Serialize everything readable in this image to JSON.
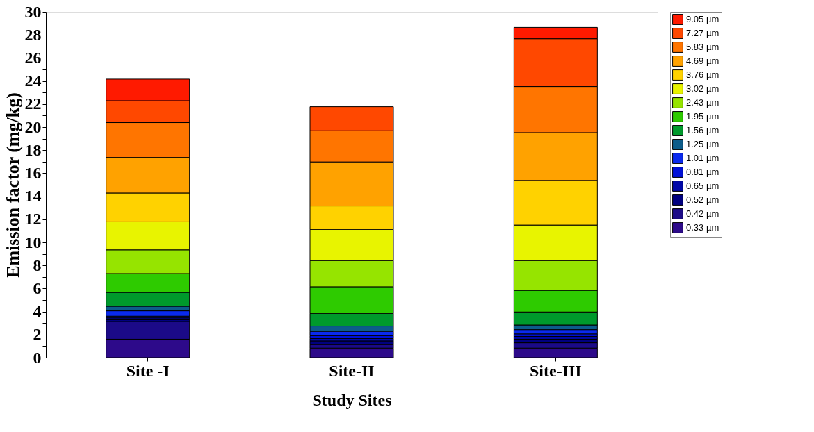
{
  "chart_data": {
    "type": "bar",
    "stacked": true,
    "xlabel": "Study Sites",
    "ylabel": "Emission factor (mg/kg)",
    "categories": [
      "Site -I",
      "Site-II",
      "Site-III"
    ],
    "ylim": [
      0,
      30
    ],
    "yticks": [
      0,
      {
        "value": 1,
        "label": null
      },
      2,
      {
        "value": 3,
        "label": null
      },
      4,
      {
        "value": 5,
        "label": null
      },
      6,
      {
        "value": 7,
        "label": null
      },
      8,
      {
        "value": 9,
        "label": null
      },
      10,
      {
        "value": 11,
        "label": null
      },
      12,
      {
        "value": 13,
        "label": null
      },
      14,
      {
        "value": 15,
        "label": null
      },
      16,
      {
        "value": 17,
        "label": null
      },
      18,
      {
        "value": 19,
        "label": null
      },
      20,
      {
        "value": 21,
        "label": null
      },
      22,
      {
        "value": 23,
        "label": null
      },
      24,
      {
        "value": 25,
        "label": null
      },
      26,
      {
        "value": 27,
        "label": null
      },
      28,
      {
        "value": 29,
        "label": null
      },
      30
    ],
    "grid": false,
    "legend": "top right",
    "series": [
      {
        "name": "0.33 µm",
        "color": "#2d0a8a",
        "values": [
          1.6,
          0.83,
          0.83
        ]
      },
      {
        "name": "0.42 µm",
        "color": "#1b0a88",
        "values": [
          1.53,
          0.31,
          0.46
        ]
      },
      {
        "name": "0.52 µm",
        "color": "#000080",
        "values": [
          0.16,
          0.31,
          0.31
        ]
      },
      {
        "name": "0.65 µm",
        "color": "#0008a8",
        "values": [
          0.16,
          0.21,
          0.24
        ]
      },
      {
        "name": "0.81 µm",
        "color": "#0010d8",
        "values": [
          0.15,
          0.25,
          0.22
        ]
      },
      {
        "name": "1.01 µm",
        "color": "#0a2aee",
        "values": [
          0.46,
          0.37,
          0.37
        ]
      },
      {
        "name": "1.25 µm",
        "color": "#0c5c8a",
        "values": [
          0.4,
          0.46,
          0.4
        ]
      },
      {
        "name": "1.56 µm",
        "color": "#009a2c",
        "values": [
          1.2,
          1.1,
          1.13
        ]
      },
      {
        "name": "1.95 µm",
        "color": "#2ecb00",
        "values": [
          1.63,
          2.31,
          1.88
        ]
      },
      {
        "name": "2.43 µm",
        "color": "#96e400",
        "values": [
          2.06,
          2.27,
          2.58
        ]
      },
      {
        "name": "3.02 µm",
        "color": "#e8f400",
        "values": [
          2.43,
          2.71,
          3.08
        ]
      },
      {
        "name": "3.76 µm",
        "color": "#ffd200",
        "values": [
          2.5,
          2.03,
          3.87
        ]
      },
      {
        "name": "4.69 µm",
        "color": "#ffa200",
        "values": [
          3.09,
          3.82,
          4.15
        ]
      },
      {
        "name": "5.83 µm",
        "color": "#ff7500",
        "values": [
          3.02,
          2.7,
          4.0
        ]
      },
      {
        "name": "7.27 µm",
        "color": "#ff4800",
        "values": [
          1.9,
          2.09,
          4.15
        ]
      },
      {
        "name": "9.05 µm",
        "color": "#ff1a00",
        "values": [
          1.87,
          null,
          0.98
        ]
      }
    ]
  }
}
